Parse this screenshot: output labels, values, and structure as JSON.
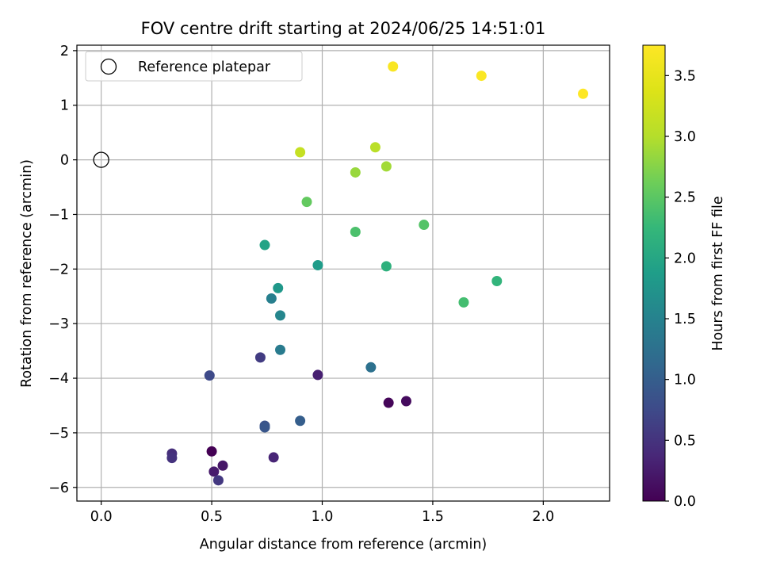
{
  "chart_data": {
    "type": "scatter",
    "title": "FOV centre drift starting at 2024/06/25 14:51:01",
    "xlabel": "Angular distance from reference (arcmin)",
    "ylabel": "Rotation from reference (arcmin)",
    "xlim": [
      -0.11,
      2.3
    ],
    "ylim": [
      -6.25,
      2.1
    ],
    "xticks": [
      0.0,
      0.5,
      1.0,
      1.5,
      2.0
    ],
    "xtick_labels": [
      "0.0",
      "0.5",
      "1.0",
      "1.5",
      "2.0"
    ],
    "yticks": [
      -6,
      -5,
      -4,
      -3,
      -2,
      -1,
      0,
      1,
      2
    ],
    "ytick_labels": [
      "−6",
      "−5",
      "−4",
      "−3",
      "−2",
      "−1",
      "0",
      "1",
      "2"
    ],
    "grid": true,
    "legend": {
      "position": "top-left",
      "entries": [
        {
          "label": "Reference platepar",
          "marker": "open-circle",
          "x": 0.0,
          "y": 0.0
        }
      ]
    },
    "colorbar": {
      "label": "Hours from first FF file",
      "colormap": "viridis",
      "range": [
        0.0,
        3.75
      ],
      "ticks": [
        0.0,
        0.5,
        1.0,
        1.5,
        2.0,
        2.5,
        3.0,
        3.5
      ],
      "tick_labels": [
        "0.0",
        "0.5",
        "1.0",
        "1.5",
        "2.0",
        "2.5",
        "3.0",
        "3.5"
      ]
    },
    "series": [
      {
        "marker": "filled-circle",
        "points": [
          {
            "x": 0.5,
            "y": -5.34,
            "c": 0.0
          },
          {
            "x": 1.3,
            "y": -4.45,
            "c": 0.05
          },
          {
            "x": 1.38,
            "y": -4.42,
            "c": 0.1
          },
          {
            "x": 0.55,
            "y": -5.6,
            "c": 0.2
          },
          {
            "x": 0.51,
            "y": -5.71,
            "c": 0.25
          },
          {
            "x": 0.98,
            "y": -3.94,
            "c": 0.3
          },
          {
            "x": 0.78,
            "y": -5.45,
            "c": 0.35
          },
          {
            "x": 0.32,
            "y": -5.38,
            "c": 0.45
          },
          {
            "x": 0.32,
            "y": -5.46,
            "c": 0.5
          },
          {
            "x": 0.53,
            "y": -5.87,
            "c": 0.55
          },
          {
            "x": 0.72,
            "y": -3.62,
            "c": 0.6
          },
          {
            "x": 0.49,
            "y": -3.95,
            "c": 0.75
          },
          {
            "x": 0.74,
            "y": -4.87,
            "c": 0.85
          },
          {
            "x": 0.74,
            "y": -4.9,
            "c": 0.9
          },
          {
            "x": 0.9,
            "y": -4.78,
            "c": 1.0
          },
          {
            "x": 1.22,
            "y": -3.8,
            "c": 1.25
          },
          {
            "x": 0.81,
            "y": -3.48,
            "c": 1.4
          },
          {
            "x": 0.77,
            "y": -2.54,
            "c": 1.45
          },
          {
            "x": 0.81,
            "y": -2.85,
            "c": 1.55
          },
          {
            "x": 0.8,
            "y": -2.35,
            "c": 1.8
          },
          {
            "x": 0.98,
            "y": -1.93,
            "c": 1.85
          },
          {
            "x": 0.74,
            "y": -1.56,
            "c": 1.95
          },
          {
            "x": 1.29,
            "y": -1.95,
            "c": 2.15
          },
          {
            "x": 1.79,
            "y": -2.22,
            "c": 2.2
          },
          {
            "x": 1.64,
            "y": -2.61,
            "c": 2.35
          },
          {
            "x": 1.15,
            "y": -1.32,
            "c": 2.4
          },
          {
            "x": 1.46,
            "y": -1.19,
            "c": 2.45
          },
          {
            "x": 0.93,
            "y": -0.77,
            "c": 2.55
          },
          {
            "x": 1.15,
            "y": -0.23,
            "c": 2.85
          },
          {
            "x": 1.29,
            "y": -0.12,
            "c": 2.9
          },
          {
            "x": 1.24,
            "y": 0.23,
            "c": 3.05
          },
          {
            "x": 0.9,
            "y": 0.14,
            "c": 3.15
          },
          {
            "x": 1.32,
            "y": 1.71,
            "c": 3.7
          },
          {
            "x": 1.72,
            "y": 1.54,
            "c": 3.72
          },
          {
            "x": 2.18,
            "y": 1.21,
            "c": 3.75
          }
        ]
      }
    ]
  }
}
